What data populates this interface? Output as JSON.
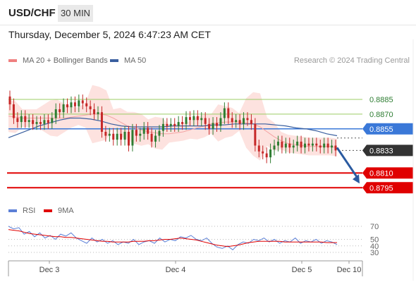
{
  "header": {
    "symbol": "USD/CHF",
    "timeframe": "30 MIN"
  },
  "datetime": "Thursday, December 5, 2024 6:47:23 AM CET",
  "legend": {
    "ma20": {
      "label": "MA 20 + Bollinger Bands",
      "color": "#f08080"
    },
    "ma50": {
      "label": "MA 50",
      "color": "#3a5f9f"
    }
  },
  "credit": "Research © 2024 Trading Central",
  "rsi_legend": {
    "rsi": {
      "label": "RSI",
      "color": "#5b7fd6"
    },
    "ma": {
      "label": "9MA",
      "color": "#e00000"
    }
  },
  "colors": {
    "up": "#2e7d32",
    "down": "#c62828",
    "resistance": "#9ccc65",
    "support": "#e00000",
    "current": "#333333",
    "pivot": "#3a78d8",
    "arrow": "#2a5aa0",
    "bollinger_fill": "#fde2df"
  },
  "chart_data": [
    {
      "type": "candlestick",
      "title": "USD/CHF 30 MIN",
      "x_ticks": [
        "Dec 3",
        "Dec 4",
        "Dec 5",
        "Dec 10"
      ],
      "ylim": [
        0.8783,
        0.8903
      ],
      "levels": [
        {
          "value": 0.8885,
          "label": "0.8885",
          "kind": "resistance"
        },
        {
          "value": 0.887,
          "label": "0.8870",
          "kind": "resistance"
        },
        {
          "value": 0.8855,
          "label": "0.8855",
          "kind": "pivot"
        },
        {
          "value": 0.8833,
          "label": "0.8833",
          "kind": "current"
        },
        {
          "value": 0.881,
          "label": "0.8810",
          "kind": "support"
        },
        {
          "value": 0.8795,
          "label": "0.8795",
          "kind": "support"
        }
      ],
      "close_series": [
        0.888,
        0.8866,
        0.8862,
        0.8868,
        0.8862,
        0.8864,
        0.886,
        0.8862,
        0.886,
        0.8864,
        0.8861,
        0.8866,
        0.8875,
        0.8872,
        0.888,
        0.8877,
        0.8882,
        0.8878,
        0.8884,
        0.8881,
        0.8878,
        0.8875,
        0.887,
        0.8872,
        0.8852,
        0.8848,
        0.885,
        0.8844,
        0.885,
        0.8844,
        0.8852,
        0.8838,
        0.8854,
        0.8848,
        0.885,
        0.8856,
        0.885,
        0.8842,
        0.8848,
        0.8853,
        0.886,
        0.8858,
        0.886,
        0.8858,
        0.8862,
        0.886,
        0.8867,
        0.8864,
        0.8868,
        0.8864,
        0.8866,
        0.886,
        0.8855,
        0.8861,
        0.8858,
        0.8866,
        0.8876,
        0.8866,
        0.8862,
        0.8864,
        0.886,
        0.8866,
        0.8864,
        0.886,
        0.8838,
        0.8832,
        0.883,
        0.8826,
        0.8834,
        0.8838,
        0.8842,
        0.8836,
        0.884,
        0.8836,
        0.8838,
        0.8842,
        0.8836,
        0.884,
        0.8838,
        0.884,
        0.8838,
        0.8836,
        0.884,
        0.8836,
        0.8838,
        0.8833
      ],
      "ma20": [
        0.8868,
        0.8867,
        0.8866,
        0.8866,
        0.8866,
        0.8866,
        0.8866,
        0.8866,
        0.8866,
        0.8867,
        0.8868,
        0.8869,
        0.887,
        0.887,
        0.8869,
        0.8866,
        0.8862,
        0.8858,
        0.8856,
        0.8854,
        0.8852,
        0.8851,
        0.885,
        0.885,
        0.8851,
        0.8852,
        0.8854,
        0.8856,
        0.8858,
        0.886,
        0.8861,
        0.8862,
        0.8862,
        0.8862,
        0.8861,
        0.886,
        0.8857,
        0.8852,
        0.8847,
        0.8843,
        0.884,
        0.8839,
        0.8838,
        0.8837,
        0.8837,
        0.8837,
        0.8837,
        0.8836
      ],
      "ma50": [
        0.8846,
        0.885,
        0.8854,
        0.8858,
        0.8861,
        0.8864,
        0.8866,
        0.8866,
        0.8865,
        0.8863,
        0.886,
        0.8858,
        0.8857,
        0.8857,
        0.8857,
        0.8857,
        0.8858,
        0.8858,
        0.8858,
        0.8858,
        0.8859,
        0.8859,
        0.886,
        0.886,
        0.886,
        0.886,
        0.8859,
        0.8858,
        0.8856,
        0.8855,
        0.8853,
        0.885,
        0.8848
      ],
      "arrow": {
        "from": 0.8833,
        "to": 0.8795
      }
    },
    {
      "type": "line",
      "title": "RSI",
      "ylim": [
        30,
        70
      ],
      "y_ticks": [
        70,
        50,
        40,
        30
      ],
      "series": [
        {
          "name": "RSI",
          "values": [
            70,
            66,
            68,
            58,
            62,
            54,
            60,
            52,
            56,
            50,
            58,
            55,
            60,
            52,
            48,
            44,
            52,
            46,
            50,
            44,
            48,
            42,
            46,
            44,
            50,
            42,
            46,
            48,
            44,
            52,
            46,
            50,
            48,
            54,
            52,
            56,
            50,
            48,
            52,
            44,
            38,
            36,
            40,
            34,
            42,
            46,
            44,
            50,
            48,
            52,
            46,
            50,
            44,
            48,
            46,
            52,
            44,
            48,
            46,
            50,
            44,
            48,
            46,
            42
          ]
        },
        {
          "name": "9MA",
          "values": [
            65,
            64,
            63,
            61,
            59,
            58,
            57,
            56,
            55,
            54,
            54,
            53,
            53,
            52,
            51,
            50,
            49,
            48,
            47,
            47,
            46,
            46,
            46,
            46,
            47,
            47,
            47,
            48,
            48,
            49,
            50,
            50,
            51,
            52,
            51,
            50,
            49,
            47,
            45,
            43,
            41,
            40,
            39,
            40,
            41,
            43,
            45,
            46,
            47,
            47,
            47,
            47,
            47,
            46,
            46,
            46,
            46,
            46,
            46,
            46,
            46,
            45,
            45,
            45
          ]
        }
      ]
    }
  ]
}
